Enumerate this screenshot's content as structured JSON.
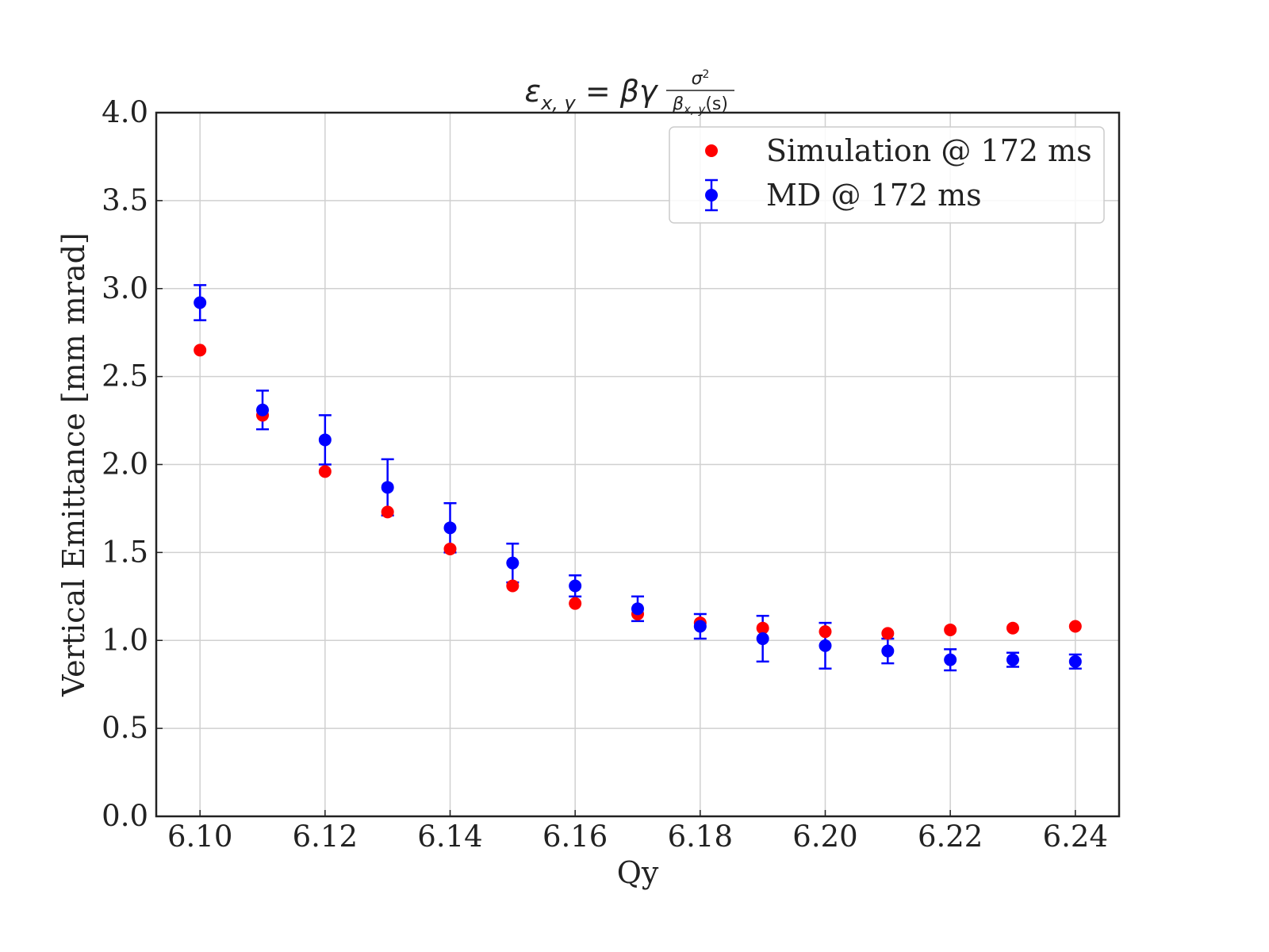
{
  "chart_data": {
    "type": "scatter",
    "title": {
      "main": "ε",
      "main_sub": "x, y",
      "eq": " = βγ",
      "num": "σ",
      "num_sup": "2",
      "den": "β",
      "den_sub": "x, y",
      "den_tail": "(s)"
    },
    "xlabel": "Qy",
    "ylabel": "Vertical Emittance [mm mrad]",
    "xlim": [
      6.093,
      6.247
    ],
    "ylim": [
      0.0,
      4.0
    ],
    "x_ticks": [
      "6.10",
      "6.12",
      "6.14",
      "6.16",
      "6.18",
      "6.20",
      "6.22",
      "6.24"
    ],
    "y_ticks": [
      "0.0",
      "0.5",
      "1.0",
      "1.5",
      "2.0",
      "2.5",
      "3.0",
      "3.5",
      "4.0"
    ],
    "grid": true,
    "legend_position": "top-right",
    "series": [
      {
        "name": "Simulation @ 172 ms",
        "color": "#ff0000",
        "marker": "circle",
        "x": [
          6.1,
          6.11,
          6.12,
          6.13,
          6.14,
          6.15,
          6.16,
          6.17,
          6.18,
          6.19,
          6.2,
          6.21,
          6.22,
          6.23,
          6.24
        ],
        "y": [
          2.65,
          2.28,
          1.96,
          1.73,
          1.52,
          1.31,
          1.21,
          1.15,
          1.1,
          1.07,
          1.05,
          1.04,
          1.06,
          1.07,
          1.08
        ]
      },
      {
        "name": "MD @ 172 ms",
        "color": "#0000ff",
        "marker": "circle",
        "error_bars": true,
        "x": [
          6.1,
          6.11,
          6.12,
          6.13,
          6.14,
          6.15,
          6.16,
          6.17,
          6.18,
          6.19,
          6.2,
          6.21,
          6.22,
          6.23,
          6.24
        ],
        "y": [
          2.92,
          2.31,
          2.14,
          1.87,
          1.64,
          1.44,
          1.31,
          1.18,
          1.08,
          1.01,
          0.97,
          0.94,
          0.89,
          0.89,
          0.88
        ],
        "yerr": [
          0.1,
          0.11,
          0.14,
          0.16,
          0.14,
          0.11,
          0.06,
          0.07,
          0.07,
          0.13,
          0.13,
          0.07,
          0.06,
          0.04,
          0.04
        ]
      }
    ]
  }
}
